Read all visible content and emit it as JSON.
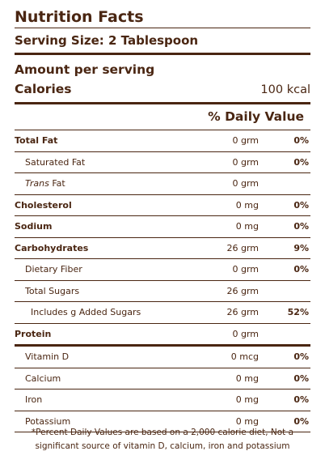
{
  "title": "Nutrition Facts",
  "serving_size": "Serving Size: 2 Tablespoon",
  "amount_per_serving": "Amount per serving",
  "calories_label": "Calories",
  "calories_value": "100 kcal",
  "daily_value_header": "% Daily Value",
  "nutrients": [
    {
      "name": "Total Fat",
      "amount": "0 grm",
      "pct": "0%"
    },
    {
      "name": "Saturated Fat",
      "amount": "0 grm",
      "pct": "0%"
    },
    {
      "name_italic": "Trans",
      "name_rest": " Fat",
      "amount": "0 grm",
      "pct": ""
    },
    {
      "name": "Cholesterol",
      "amount": "0 mg",
      "pct": "0%"
    },
    {
      "name": "Sodium",
      "amount": "0 mg",
      "pct": "0%"
    },
    {
      "name": "Carbohydrates",
      "amount": "26 grm",
      "pct": "9%"
    },
    {
      "name": "Dietary Fiber",
      "amount": "0 grm",
      "pct": "0%"
    },
    {
      "name": "Total Sugars",
      "amount": "26 grm",
      "pct": ""
    },
    {
      "name": "Includes g Added Sugars",
      "amount": "26 grm",
      "pct": "52%"
    },
    {
      "name": "Protein",
      "amount": "0 grm",
      "pct": ""
    }
  ],
  "vitamins": [
    {
      "name": "Vitamin D",
      "amount": "0 mcg",
      "pct": "0%"
    },
    {
      "name": "Calcium",
      "amount": "0 mg",
      "pct": "0%"
    },
    {
      "name": "Iron",
      "amount": "0 mg",
      "pct": "0%"
    },
    {
      "name": "Potassium",
      "amount": "0 mg",
      "pct": "0%"
    }
  ],
  "footnote": "*Percent Daily Values are based on a 2,000 calorie diet, Not a significant source of vitamin D, calcium, iron and potassium",
  "colors": {
    "text": "#4a2612",
    "background": "#ffffff"
  }
}
